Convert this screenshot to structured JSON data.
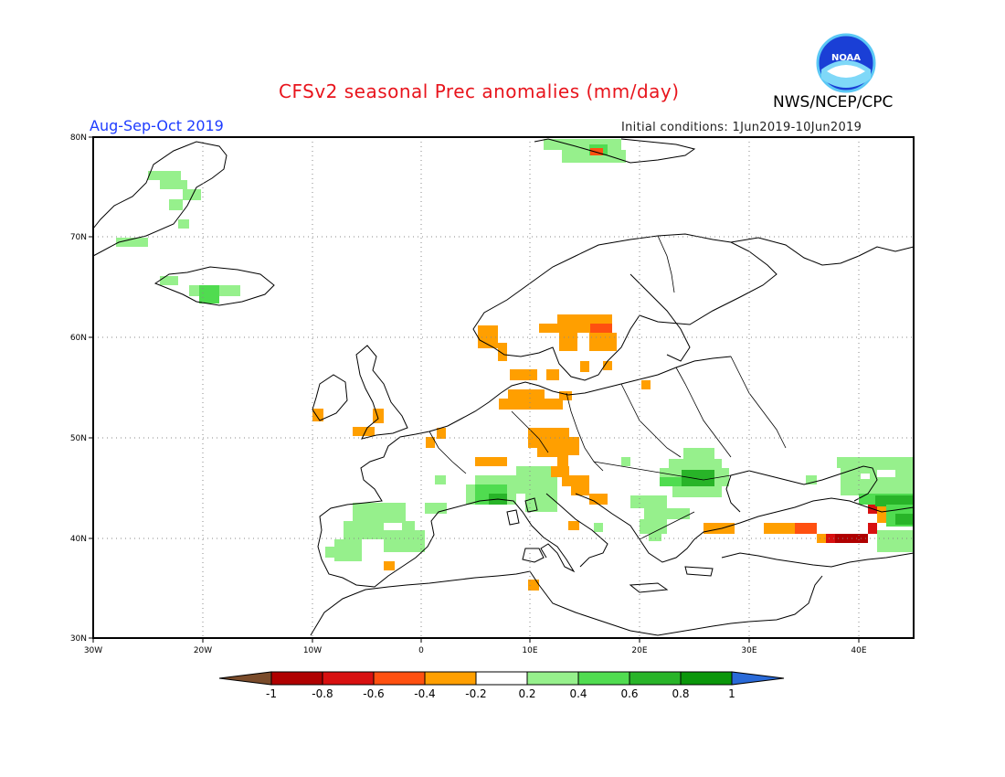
{
  "header": {
    "title": "CFSv2 seasonal Prec anomalies (mm/day)",
    "org": "NWS/NCEP/CPC",
    "logo_text": "NOAA",
    "period": "Aug-Sep-Oct 2019",
    "initial_conditions": "Initial conditions: 1Jun2019-10Jun2019"
  },
  "map": {
    "lon_range": [
      -30,
      45
    ],
    "lat_range": [
      30,
      80
    ],
    "lon_ticks": [
      "30W",
      "20W",
      "10W",
      "0",
      "10E",
      "20E",
      "30E",
      "40E"
    ],
    "lat_ticks": [
      "30N",
      "40N",
      "50N",
      "60N",
      "70N",
      "80N"
    ],
    "grid": "dotted",
    "coastlines": "black outline"
  },
  "colorbar": {
    "labels": [
      "-1",
      "-0.8",
      "-0.6",
      "-0.4",
      "-0.2",
      "0.2",
      "0.4",
      "0.6",
      "0.8",
      "1"
    ],
    "colors": [
      "#7a4b2a",
      "#b00000",
      "#d81010",
      "#ff5010",
      "#ff9f00",
      "#ffffff",
      "#96f08c",
      "#50dc50",
      "#28b428",
      "#0a960a",
      "#2a6ad8"
    ]
  },
  "anomaly_regions": [
    {
      "region": "Scandinavia / south Sweden",
      "class": "-0.4 to -0.2",
      "color": "#ff9f00"
    },
    {
      "region": "North Sea / Denmark / N Germany",
      "class": "-0.4 to -0.2",
      "color": "#ff9f00"
    },
    {
      "region": "Central Germany / Czechia",
      "class": "-0.4 to -0.2",
      "color": "#ff9f00"
    },
    {
      "region": "Stockholm area",
      "class": "-0.6 to -0.4",
      "color": "#ff5010"
    },
    {
      "region": "Turkey (north)",
      "class": "-0.4 to -0.2",
      "color": "#ff9f00"
    },
    {
      "region": "Eastern Turkey",
      "class": "-0.8 to -0.6",
      "color": "#d81010"
    },
    {
      "region": "Iberia",
      "class": "0.2 to 0.4",
      "color": "#96f08c"
    },
    {
      "region": "Alps / N Italy",
      "class": "0.4 to 0.6",
      "color": "#50dc50"
    },
    {
      "region": "Romania",
      "class": "0.4 to 0.6",
      "color": "#50dc50"
    },
    {
      "region": "Caucasus",
      "class": "0.6 to 0.8",
      "color": "#28b428"
    },
    {
      "region": "Svalbard / Greenland / Iceland",
      "class": "0.2 to 0.4",
      "color": "#96f08c"
    }
  ]
}
